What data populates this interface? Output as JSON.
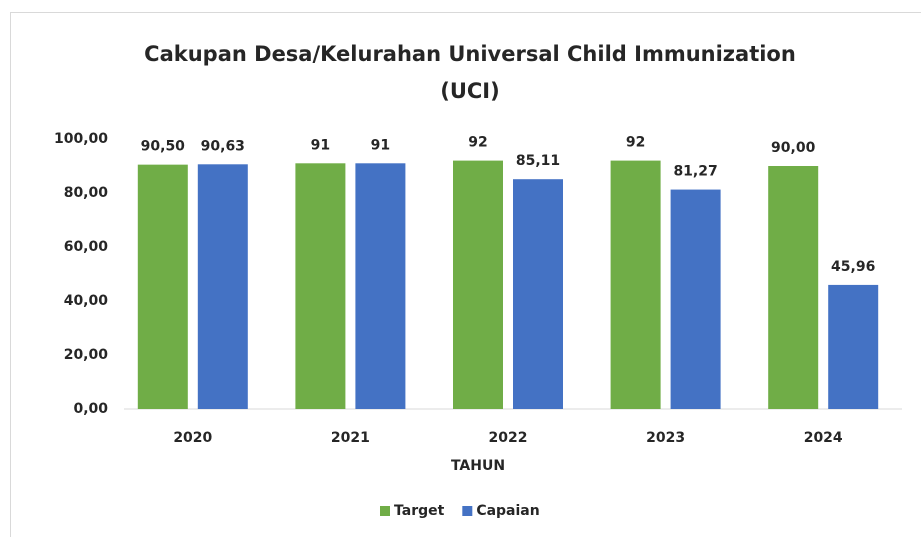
{
  "chart_data": {
    "type": "bar",
    "title": [
      "Cakupan Desa/Kelurahan Universal Child Immunization",
      "(UCI)"
    ],
    "x_label": "TAHUN",
    "categories": [
      "2020",
      "2021",
      "2022",
      "2023",
      "2024"
    ],
    "series": [
      {
        "name": "Target",
        "color": "#70ad47",
        "values": [
          90.5,
          91,
          92,
          92,
          90
        ],
        "value_labels": [
          "90,50",
          "91",
          "92",
          "92",
          "90,00"
        ]
      },
      {
        "name": "Capaian",
        "color": "#4472c4",
        "values": [
          90.63,
          91,
          85.11,
          81.27,
          45.96
        ],
        "value_labels": [
          "90,63",
          "91",
          "85,11",
          "81,27",
          "45,96"
        ]
      }
    ],
    "ylim": [
      0,
      100
    ],
    "yticks": [
      {
        "value": 0,
        "label": "0,00"
      },
      {
        "value": 20,
        "label": "20,00"
      },
      {
        "value": 40,
        "label": "40,00"
      },
      {
        "value": 60,
        "label": "60,00"
      },
      {
        "value": 80,
        "label": "80,00"
      },
      {
        "value": 100,
        "label": "100,00"
      }
    ],
    "grid": false,
    "legend": "bottom"
  }
}
